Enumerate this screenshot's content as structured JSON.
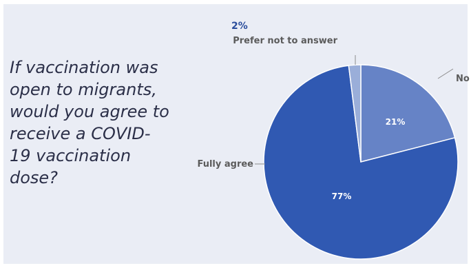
{
  "question": "If vaccination was open to migrants, would you agree to receive a COVID-19 vaccination dose?",
  "chart_data": {
    "type": "pie",
    "title": "",
    "slices": [
      {
        "label": "No",
        "value": 21,
        "value_label": "21%",
        "color": "#6683c6"
      },
      {
        "label": "Fully agree",
        "value": 77,
        "value_label": "77%",
        "color": "#3059b2"
      },
      {
        "label": "Prefer not to answer",
        "value": 2,
        "value_label": "2%",
        "color": "#9aaed9"
      }
    ],
    "legend": "none",
    "label_color": "#5b5b5b",
    "value_label_color": "#ffffff",
    "callout_value_color": "#2a4d9c"
  }
}
